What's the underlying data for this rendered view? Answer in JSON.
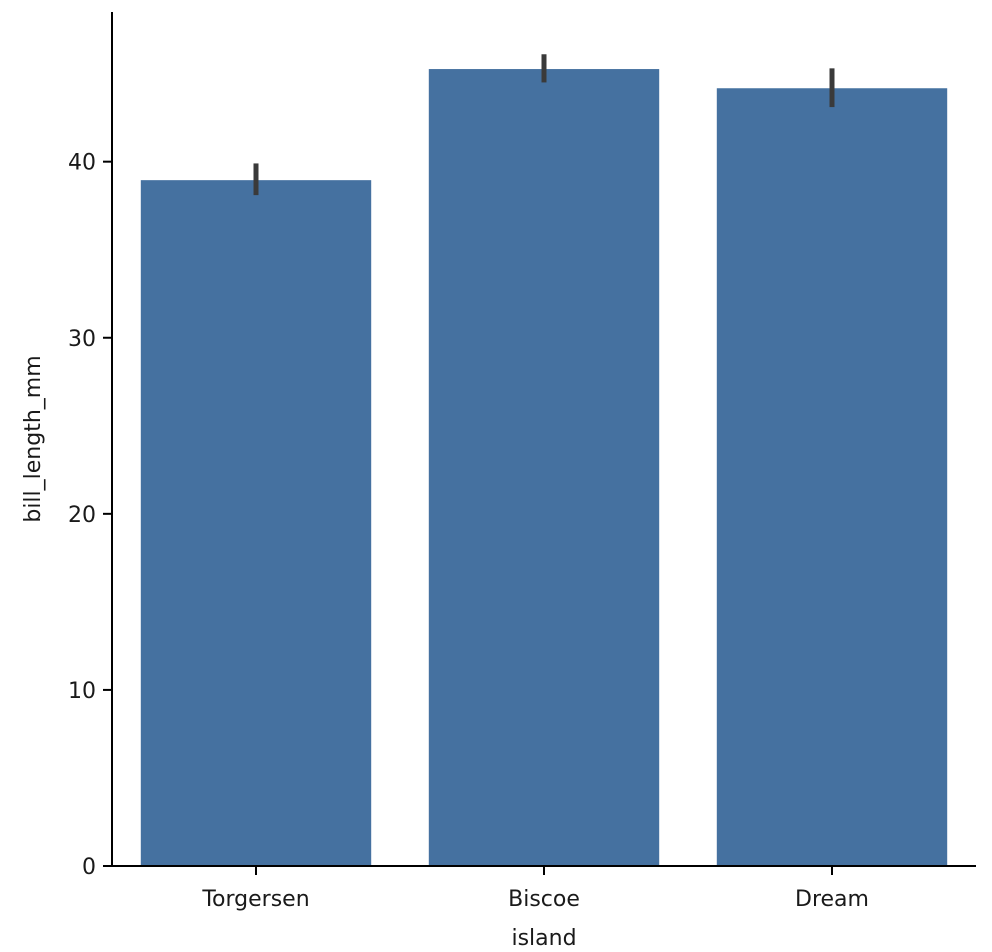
{
  "chart_data": {
    "type": "bar",
    "title": "",
    "xlabel": "island",
    "ylabel": "bill_length_mm",
    "categories": [
      "Torgersen",
      "Biscoe",
      "Dream"
    ],
    "series": [
      {
        "values": [
          38.95,
          45.26,
          44.17
        ],
        "error_low": [
          38.1,
          44.5,
          43.1
        ],
        "error_high": [
          39.9,
          46.1,
          45.3
        ]
      }
    ],
    "ylim": [
      0,
      48.5
    ],
    "yticks": [
      0,
      10,
      20,
      30,
      40
    ],
    "ytick_labels": [
      "0",
      "10",
      "20",
      "30",
      "40"
    ],
    "grid": false,
    "legend": "none",
    "bar_color": "#4571A0",
    "errorbar_color": "#3a3a3a",
    "axis_color": "#000000"
  }
}
